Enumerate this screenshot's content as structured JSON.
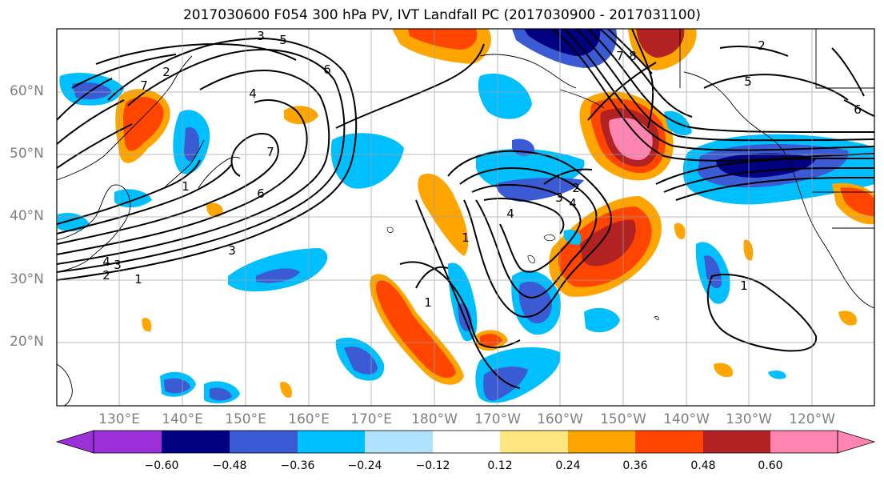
{
  "title": "2017030600 F054 300 hPa PV, IVT Landfall PC (2017030900 - 2017031100)",
  "latitude_labels": [
    "60°N",
    "50°N",
    "40°N",
    "30°N",
    "20°N"
  ],
  "longitude_labels": [
    "130°E",
    "140°E",
    "150°E",
    "160°E",
    "170°E",
    "180°W",
    "170°W",
    "160°W",
    "150°W",
    "140°W",
    "130°W",
    "120°W"
  ],
  "colorbar": {
    "tick_labels": [
      "−0.60",
      "−0.48",
      "−0.36",
      "−0.24",
      "−0.12",
      "0.12",
      "0.24",
      "0.36",
      "0.48",
      "0.60"
    ],
    "colors": [
      "#9b30d9",
      "#000080",
      "#3a5bd4",
      "#00bfff",
      "#b0e2ff",
      "#ffffff",
      "#ffe680",
      "#ffa500",
      "#ff4500",
      "#b22222",
      "#ff85b0"
    ]
  },
  "contour_labels": [
    "3",
    "5",
    "6",
    "7",
    "1",
    "2",
    "4",
    "3",
    "6",
    "7",
    "2",
    "3",
    "4",
    "1",
    "2",
    "4",
    "3",
    "1",
    "8",
    "7",
    "5",
    "6",
    "4",
    "1",
    "1",
    "2"
  ],
  "colors": {
    "positive_light": "#ffe680",
    "positive_mid": "#ffa500",
    "positive_strong": "#ff4500",
    "positive_deep": "#b22222",
    "positive_max": "#ff85b0",
    "negative_light": "#b0e2ff",
    "negative_mid": "#00bfff",
    "negative_strong": "#3a5bd4",
    "negative_deep": "#000080"
  }
}
